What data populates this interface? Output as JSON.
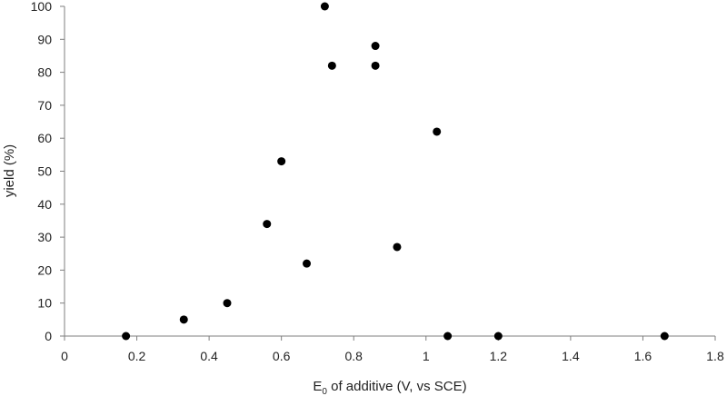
{
  "chart_data": {
    "type": "scatter",
    "title": "",
    "xlabel_main": "E",
    "xlabel_sub": "0",
    "xlabel_rest": " of additive (V, vs SCE)",
    "ylabel": "yield (%)",
    "xlim": [
      0,
      1.8
    ],
    "ylim": [
      0,
      100
    ],
    "xticks": [
      0,
      0.2,
      0.4,
      0.6,
      0.8,
      1,
      1.2,
      1.4,
      1.6,
      1.8
    ],
    "xtick_labels": [
      "0",
      "0.2",
      "0.4",
      "0.6",
      "0.8",
      "1",
      "1.2",
      "1.4",
      "1.6",
      "1.8"
    ],
    "yticks": [
      0,
      10,
      20,
      30,
      40,
      50,
      60,
      70,
      80,
      90,
      100
    ],
    "ytick_labels": [
      "0",
      "10",
      "20",
      "30",
      "40",
      "50",
      "60",
      "70",
      "80",
      "90",
      "100"
    ],
    "grid": false,
    "legend": "none",
    "marker_color": "#000000",
    "points": [
      {
        "x": 0.17,
        "y": 0
      },
      {
        "x": 0.33,
        "y": 5
      },
      {
        "x": 0.45,
        "y": 10
      },
      {
        "x": 0.56,
        "y": 34
      },
      {
        "x": 0.6,
        "y": 53
      },
      {
        "x": 0.67,
        "y": 22
      },
      {
        "x": 0.72,
        "y": 100
      },
      {
        "x": 0.74,
        "y": 82
      },
      {
        "x": 0.86,
        "y": 88
      },
      {
        "x": 0.86,
        "y": 82
      },
      {
        "x": 0.92,
        "y": 27
      },
      {
        "x": 1.03,
        "y": 62
      },
      {
        "x": 1.06,
        "y": 0
      },
      {
        "x": 1.2,
        "y": 0
      },
      {
        "x": 1.66,
        "y": 0
      }
    ]
  }
}
